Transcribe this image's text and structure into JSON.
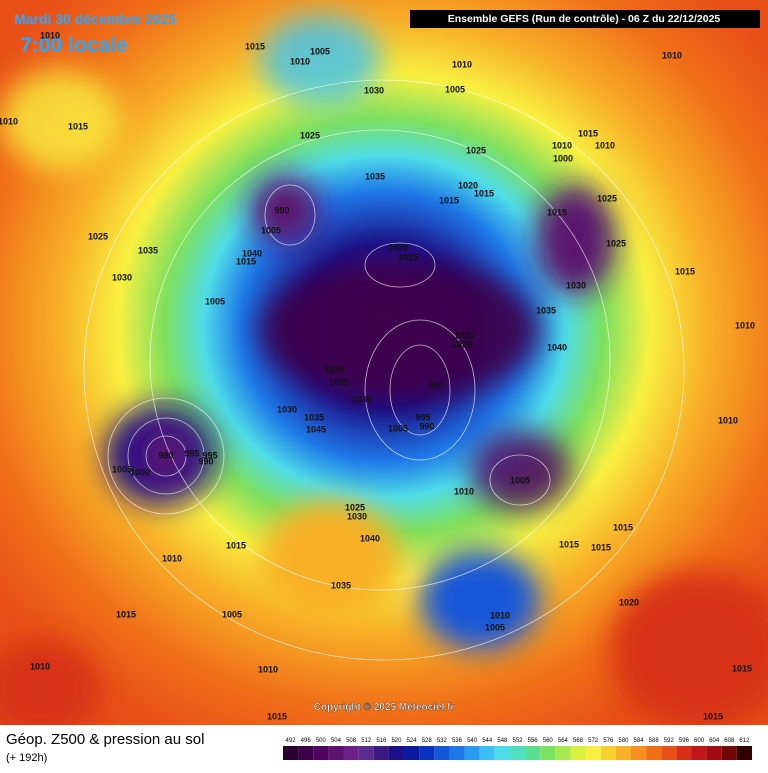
{
  "header": {
    "date": "Mardi 30 décembre 2025",
    "time": "7:00 locale",
    "run": "Ensemble GEFS  (Run de contrôle)  -  06 Z du 22/12/2025"
  },
  "copyright": "Copyright © 2025 Meteociel.fr",
  "footer": {
    "title": "Géop. Z500 & pression au sol",
    "lead": "(+ 192h)"
  },
  "scale": {
    "values": [
      492,
      496,
      500,
      504,
      508,
      512,
      516,
      520,
      524,
      528,
      532,
      536,
      540,
      544,
      548,
      552,
      556,
      560,
      564,
      568,
      572,
      576,
      580,
      584,
      588,
      592,
      596,
      600,
      604,
      608,
      612
    ],
    "colors": [
      "#2a0030",
      "#3d0048",
      "#4f0560",
      "#5c1470",
      "#6a2086",
      "#5a2a8c",
      "#3a1a80",
      "#1c1088",
      "#0a1aa0",
      "#0a32c0",
      "#1456d8",
      "#1e78e8",
      "#2a9cf0",
      "#3cc0f4",
      "#4edce8",
      "#50e0c0",
      "#58e090",
      "#7ce060",
      "#a8e850",
      "#d8f040",
      "#f8f040",
      "#f8d030",
      "#f8b028",
      "#f89020",
      "#f07018",
      "#e85018",
      "#d83018",
      "#c01818",
      "#a00c10",
      "#700808",
      "#300000"
    ]
  },
  "isobar_labels": [
    "1015",
    "1005",
    "1010",
    "1010",
    "1010",
    "1015",
    "1030",
    "1010",
    "1005",
    "1010",
    "1025",
    "1035",
    "1025",
    "1015",
    "1010",
    "1010",
    "1000",
    "1020",
    "1015",
    "1015",
    "1015",
    "1025",
    "1025",
    "990",
    "1005",
    "1040",
    "1015",
    "1035",
    "1030",
    "1025",
    "1020",
    "1015",
    "1030",
    "1015",
    "1035",
    "1040",
    "1010",
    "1005",
    "1025",
    "1020",
    "1035",
    "1035",
    "1030",
    "990",
    "995",
    "990",
    "1005",
    "1030",
    "1035",
    "1045",
    "980",
    "985",
    "995",
    "990",
    "1000",
    "1005",
    "1010",
    "1005",
    "1025",
    "1030",
    "1040",
    "1015",
    "1010",
    "1035",
    "1005",
    "1015",
    "1015",
    "1015",
    "1015",
    "1020",
    "1010",
    "1005",
    "1010",
    "1010",
    "1015",
    "1015",
    "1015",
    "1010"
  ]
}
